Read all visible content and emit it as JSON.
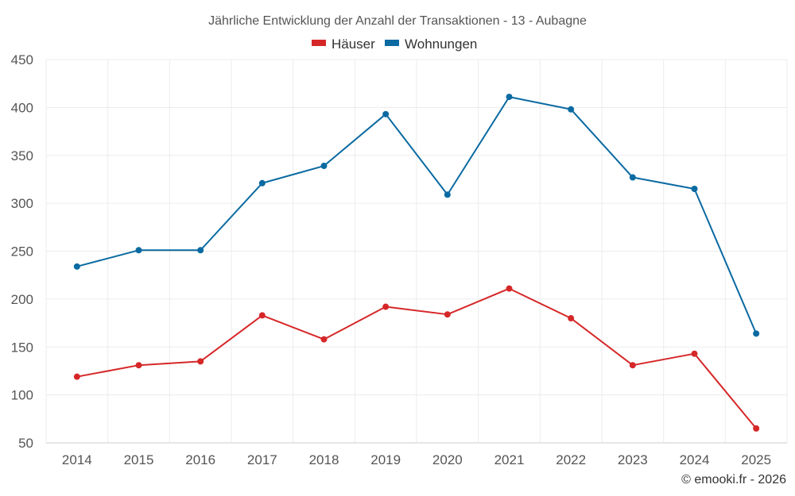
{
  "chart_data": {
    "type": "line",
    "title": "Jährliche Entwicklung der Anzahl der Transaktionen - 13 - Aubagne",
    "categories": [
      "2014",
      "2015",
      "2016",
      "2017",
      "2018",
      "2019",
      "2020",
      "2021",
      "2022",
      "2023",
      "2024",
      "2025"
    ],
    "series": [
      {
        "name": "Häuser",
        "color": "#d62728",
        "values": [
          119,
          131,
          135,
          183,
          158,
          192,
          184,
          211,
          180,
          131,
          143,
          65
        ]
      },
      {
        "name": "Wohnungen",
        "color": "#0a6aa1",
        "values": [
          234,
          251,
          251,
          321,
          339,
          393,
          309,
          411,
          398,
          327,
          315,
          164
        ]
      }
    ],
    "ylim": [
      50,
      450
    ],
    "yticks": [
      50,
      100,
      150,
      200,
      250,
      300,
      350,
      400,
      450
    ],
    "grid": true,
    "legend": "top-center",
    "xlabel": "",
    "ylabel": ""
  },
  "credit": "© emooki.fr - 2026"
}
